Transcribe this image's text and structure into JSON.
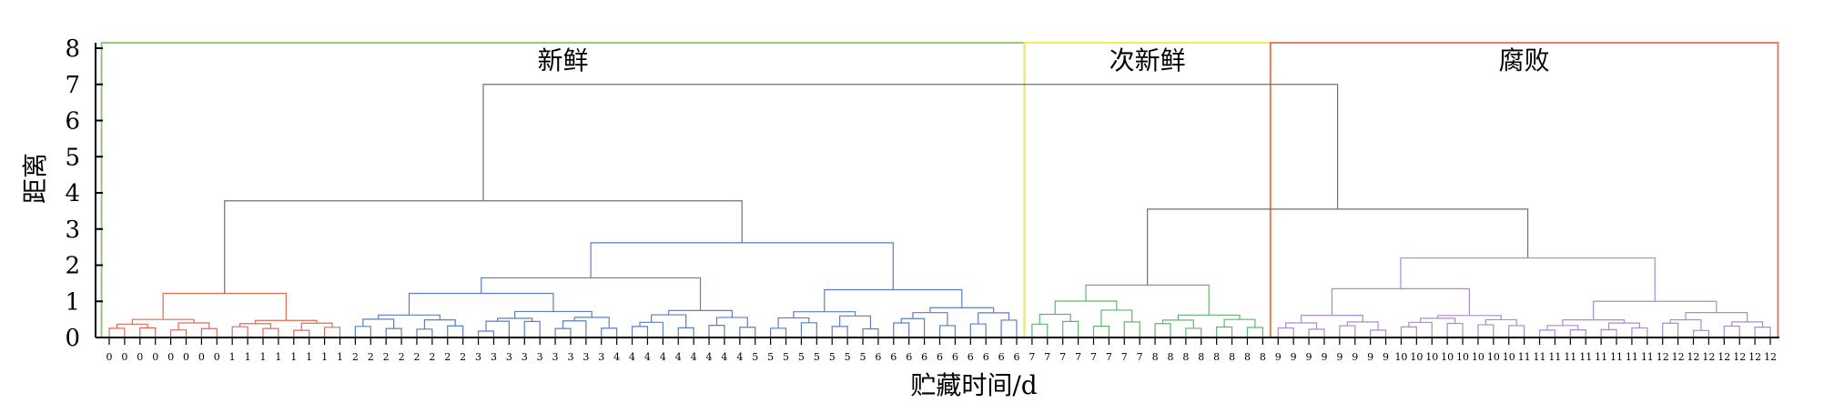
{
  "chart_data": {
    "type": "dendrogram",
    "xlabel": "贮藏时间/d",
    "ylabel": "距离",
    "ylim": [
      0,
      8
    ],
    "yticks": [
      0,
      1,
      2,
      3,
      4,
      5,
      6,
      7,
      8
    ],
    "leaf_groups": [
      {
        "label": "0",
        "count": 8
      },
      {
        "label": "1",
        "count": 8
      },
      {
        "label": "2",
        "count": 8
      },
      {
        "label": "3",
        "count": 9
      },
      {
        "label": "4",
        "count": 9
      },
      {
        "label": "5",
        "count": 8
      },
      {
        "label": "6",
        "count": 10
      },
      {
        "label": "7",
        "count": 8
      },
      {
        "label": "8",
        "count": 8
      },
      {
        "label": "9",
        "count": 8
      },
      {
        "label": "10",
        "count": 8
      },
      {
        "label": "11",
        "count": 9
      },
      {
        "label": "12",
        "count": 8
      }
    ],
    "clusters": [
      {
        "name": "新鲜",
        "leaf_range": [
          0,
          59
        ],
        "box_color": "#8dc26f"
      },
      {
        "name": "次新鲜",
        "leaf_range": [
          60,
          75
        ],
        "box_color": "#f2e84b"
      },
      {
        "name": "腐败",
        "leaf_range": [
          76,
          108
        ],
        "box_color": "#e0705f"
      }
    ],
    "merges": [
      {
        "left": 0,
        "right": 15,
        "height": 1.22,
        "color": "#e06a55"
      },
      {
        "left": 16,
        "right": 33,
        "height": 1.22,
        "color": "#5b7fbf"
      },
      {
        "left": 34,
        "right": 42,
        "height": 0.82,
        "color": "#5b7fbf"
      },
      {
        "left": 16,
        "right": 42,
        "height": 1.65,
        "color": "#5b7fbf"
      },
      {
        "left": 43,
        "right": 59,
        "height": 1.32,
        "color": "#5b7fbf"
      },
      {
        "left": 16,
        "right": 59,
        "height": 2.62,
        "color": "#5b7fbf"
      },
      {
        "left": 0,
        "right": 59,
        "height": 3.78,
        "color": "#707070"
      },
      {
        "left": 60,
        "right": 75,
        "height": 1.45,
        "color": "#5fb66e"
      },
      {
        "left": 76,
        "right": 92,
        "height": 1.35,
        "color": "#a98bd0"
      },
      {
        "left": 93,
        "right": 108,
        "height": 1.0,
        "color": "#a98bd0"
      },
      {
        "left": 76,
        "right": 108,
        "height": 2.2,
        "color": "#a98bd0"
      },
      {
        "left": 60,
        "right": 108,
        "height": 3.55,
        "color": "#707070"
      },
      {
        "left": 0,
        "right": 108,
        "height": 7.0,
        "color": "#707070"
      }
    ],
    "subclusters": [
      {
        "from": 0,
        "to": 7,
        "height": 0.6,
        "color": "#e06a55"
      },
      {
        "from": 8,
        "to": 15,
        "height": 0.55,
        "color": "#e06a55"
      },
      {
        "from": 16,
        "to": 23,
        "height": 0.72,
        "color": "#5b7fbf"
      },
      {
        "from": 24,
        "to": 33,
        "height": 0.78,
        "color": "#5b7fbf"
      },
      {
        "from": 34,
        "to": 42,
        "height": 0.82,
        "color": "#5b7fbf"
      },
      {
        "from": 43,
        "to": 50,
        "height": 0.8,
        "color": "#5b7fbf"
      },
      {
        "from": 51,
        "to": 59,
        "height": 0.95,
        "color": "#5b7fbf"
      },
      {
        "from": 60,
        "to": 67,
        "height": 1.08,
        "color": "#5fb66e"
      },
      {
        "from": 68,
        "to": 75,
        "height": 0.68,
        "color": "#5fb66e"
      },
      {
        "from": 76,
        "to": 83,
        "height": 0.65,
        "color": "#a98bd0"
      },
      {
        "from": 84,
        "to": 92,
        "height": 0.7,
        "color": "#a98bd0"
      },
      {
        "from": 93,
        "to": 100,
        "height": 0.55,
        "color": "#a98bd0"
      },
      {
        "from": 101,
        "to": 108,
        "height": 0.7,
        "color": "#a98bd0"
      }
    ]
  }
}
